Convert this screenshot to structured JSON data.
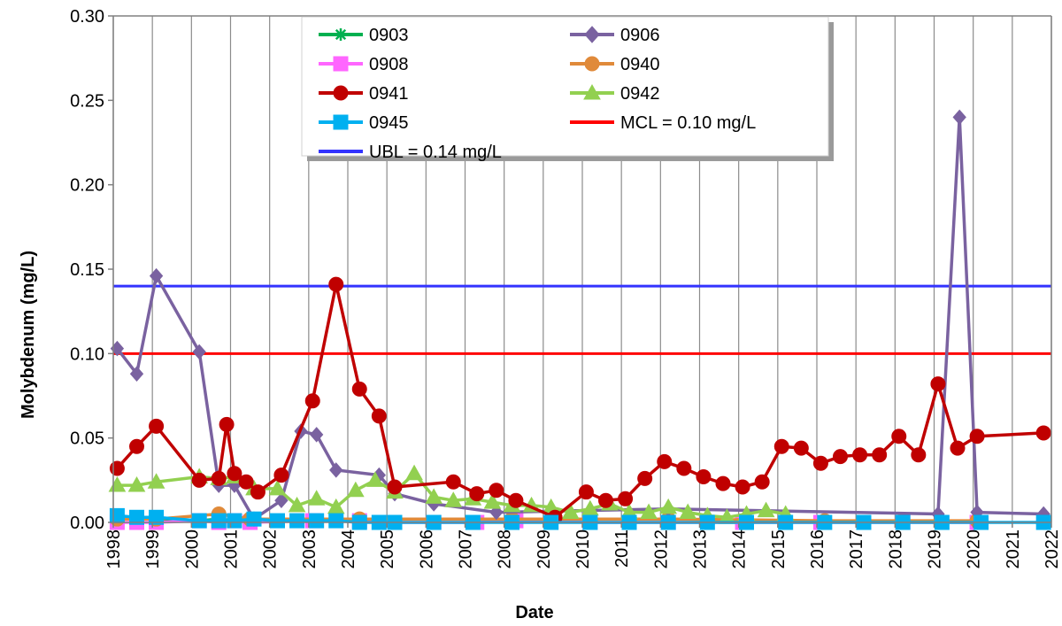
{
  "chart_data": {
    "type": "line",
    "title": "",
    "xlabel": "Date",
    "ylabel": "Molybdenum (mg/L)",
    "x_ticks": [
      "1998",
      "1999",
      "2000",
      "2001",
      "2002",
      "2003",
      "2004",
      "2005",
      "2006",
      "2007",
      "2008",
      "2009",
      "2010",
      "2011",
      "2012",
      "2013",
      "2014",
      "2015",
      "2016",
      "2017",
      "2018",
      "2019",
      "2020",
      "2021",
      "2022"
    ],
    "y_ticks": [
      "0.00",
      "0.05",
      "0.10",
      "0.15",
      "0.20",
      "0.25",
      "0.30"
    ],
    "xlim": [
      1998,
      2022
    ],
    "ylim": [
      0,
      0.3
    ],
    "grid": "vertical",
    "legend": "top-center",
    "series": [
      {
        "name": "0903",
        "color": "#00b050",
        "marker": "asterisk",
        "x": [
          1998.1,
          1998.6,
          1999.1,
          2000.2,
          2000.7,
          2001.1
        ],
        "y": [
          0.002,
          0.002,
          0.002,
          0.001,
          0.002,
          0.001
        ]
      },
      {
        "name": "0906",
        "color": "#7a62a0",
        "marker": "diamond",
        "x": [
          1998.1,
          1998.6,
          1999.1,
          2000.2,
          2000.7,
          2001.1,
          2001.6,
          2002.3,
          2002.8,
          2003.2,
          2003.7,
          2004.8,
          2005.2,
          2006.2,
          2007.8,
          2012.2,
          2019.1,
          2019.65,
          2020.1,
          2021.8
        ],
        "y": [
          0.103,
          0.088,
          0.146,
          0.101,
          0.022,
          0.022,
          0.002,
          0.013,
          0.054,
          0.052,
          0.031,
          0.028,
          0.017,
          0.011,
          0.006,
          0.008,
          0.005,
          0.24,
          0.006,
          0.005
        ]
      },
      {
        "name": "0908",
        "color": "#ff66ff",
        "marker": "square",
        "x": [
          1998.1,
          1998.6,
          1999.1,
          2000.2,
          2000.7,
          2001.1,
          2001.5,
          2003.1,
          2004.3,
          2005.2,
          2006.2,
          2007.3,
          2008.3,
          2010.2,
          2012.2,
          2014.1,
          2016.1,
          2018.2,
          2020.1
        ],
        "y": [
          0.0,
          0.0,
          0.0,
          0.001,
          0.0,
          0.001,
          0.0,
          0.001,
          0.001,
          0.0,
          0.0,
          0.0,
          0.001,
          0.0,
          0.0,
          0.0,
          0.0,
          0.0,
          0.0
        ]
      },
      {
        "name": "0940",
        "color": "#e08a3a",
        "marker": "circle",
        "x": [
          1998.1,
          1999.1,
          2000.7,
          2001.5,
          2004.3,
          2008.2,
          2012.2,
          2016.2,
          2018.2,
          2020.1
        ],
        "y": [
          0.002,
          0.002,
          0.005,
          0.002,
          0.002,
          0.002,
          0.002,
          0.001,
          0.001,
          0.001
        ]
      },
      {
        "name": "0941",
        "color": "#c00000",
        "marker": "circle",
        "x": [
          1998.1,
          1998.6,
          1999.1,
          2000.2,
          2000.7,
          2000.9,
          2001.1,
          2001.4,
          2001.7,
          2002.3,
          2003.1,
          2003.7,
          2004.3,
          2004.8,
          2005.2,
          2006.7,
          2007.3,
          2007.8,
          2008.3,
          2009.3,
          2010.1,
          2010.6,
          2011.1,
          2011.6,
          2012.1,
          2012.6,
          2013.1,
          2013.6,
          2014.1,
          2014.6,
          2015.1,
          2015.6,
          2016.1,
          2016.6,
          2017.1,
          2017.6,
          2018.1,
          2018.6,
          2019.1,
          2019.6,
          2020.1,
          2021.8
        ],
        "y": [
          0.032,
          0.045,
          0.057,
          0.025,
          0.026,
          0.058,
          0.029,
          0.024,
          0.018,
          0.028,
          0.072,
          0.141,
          0.079,
          0.063,
          0.021,
          0.024,
          0.017,
          0.019,
          0.013,
          0.003,
          0.018,
          0.013,
          0.014,
          0.026,
          0.036,
          0.032,
          0.027,
          0.023,
          0.021,
          0.024,
          0.045,
          0.044,
          0.035,
          0.039,
          0.04,
          0.04,
          0.051,
          0.04,
          0.082,
          0.044,
          0.051,
          0.053
        ]
      },
      {
        "name": "0942",
        "color": "#92d050",
        "marker": "triangle",
        "x": [
          1998.1,
          1998.6,
          1999.1,
          2000.2,
          2000.7,
          2001.1,
          2001.6,
          2002.2,
          2002.7,
          2003.2,
          2003.7,
          2004.2,
          2004.7,
          2005.2,
          2005.7,
          2006.2,
          2006.7,
          2007.2,
          2007.7,
          2008.2,
          2008.7,
          2009.2,
          2009.7,
          2010.2,
          2010.7,
          2011.2,
          2011.7,
          2012.2,
          2012.7,
          2013.2,
          2013.7,
          2014.2,
          2014.7,
          2015.2
        ],
        "y": [
          0.022,
          0.022,
          0.024,
          0.027,
          0.026,
          0.027,
          0.02,
          0.02,
          0.01,
          0.014,
          0.009,
          0.019,
          0.025,
          0.018,
          0.029,
          0.015,
          0.013,
          0.014,
          0.012,
          0.01,
          0.01,
          0.009,
          0.006,
          0.008,
          0.011,
          0.006,
          0.006,
          0.009,
          0.006,
          0.004,
          0.003,
          0.005,
          0.007,
          0.005
        ]
      },
      {
        "name": "0945",
        "color": "#00b0f0",
        "marker": "square",
        "x": [
          1998.1,
          1998.6,
          1999.1,
          2000.2,
          2000.7,
          2001.1,
          2001.6,
          2002.2,
          2002.7,
          2003.2,
          2003.7,
          2004.3,
          2004.8,
          2005.2,
          2006.2,
          2007.2,
          2008.2,
          2009.2,
          2010.2,
          2011.2,
          2012.2,
          2013.2,
          2014.2,
          2015.2,
          2016.2,
          2017.2,
          2018.2,
          2019.2,
          2020.2,
          2021.8
        ],
        "y": [
          0.004,
          0.003,
          0.003,
          0.001,
          0.001,
          0.001,
          0.002,
          0.001,
          0.001,
          0.001,
          0.001,
          0.0,
          0.0,
          0.0,
          0.0,
          0.0,
          0.0,
          0.0,
          0.0,
          0.0,
          0.0,
          0.0,
          0.0,
          0.0,
          0.0,
          0.0,
          0.0,
          0.0,
          0.0,
          0.0
        ]
      }
    ],
    "reference_lines": [
      {
        "name": "MCL = 0.10 mg/L",
        "color": "#ff0000",
        "y": 0.1
      },
      {
        "name": "UBL = 0.14 mg/L",
        "color": "#3333ff",
        "y": 0.14
      }
    ],
    "legend_order": [
      "0903",
      "0906",
      "0908",
      "0940",
      "0941",
      "0942",
      "0945",
      "MCL = 0.10 mg/L",
      "UBL = 0.14 mg/L"
    ]
  }
}
